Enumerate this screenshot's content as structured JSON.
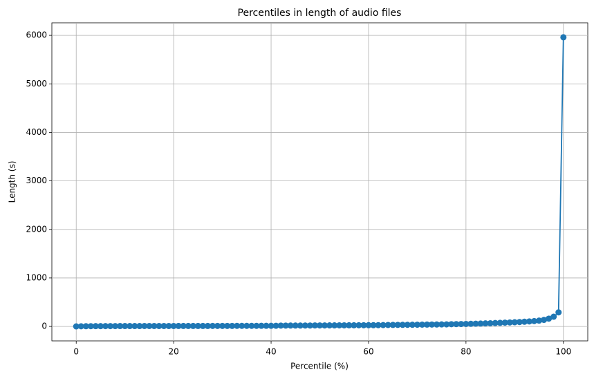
{
  "chart_data": {
    "type": "line",
    "title": "Percentiles in length of audio files",
    "x_label": "Percentile (%)",
    "y_label": "Length (s)",
    "x": [
      0,
      1,
      2,
      3,
      4,
      5,
      6,
      7,
      8,
      9,
      10,
      11,
      12,
      13,
      14,
      15,
      16,
      17,
      18,
      19,
      20,
      21,
      22,
      23,
      24,
      25,
      26,
      27,
      28,
      29,
      30,
      31,
      32,
      33,
      34,
      35,
      36,
      37,
      38,
      39,
      40,
      41,
      42,
      43,
      44,
      45,
      46,
      47,
      48,
      49,
      50,
      51,
      52,
      53,
      54,
      55,
      56,
      57,
      58,
      59,
      60,
      61,
      62,
      63,
      64,
      65,
      66,
      67,
      68,
      69,
      70,
      71,
      72,
      73,
      74,
      75,
      76,
      77,
      78,
      79,
      80,
      81,
      82,
      83,
      84,
      85,
      86,
      87,
      88,
      89,
      90,
      91,
      92,
      93,
      94,
      95,
      96,
      97,
      98,
      99,
      100
    ],
    "values": [
      1,
      3,
      4,
      5,
      6,
      6,
      7,
      7,
      7,
      8,
      8,
      8,
      8,
      8,
      9,
      9,
      9,
      9,
      9,
      9,
      9,
      10,
      10,
      10,
      10,
      10,
      10,
      10,
      11,
      11,
      11,
      11,
      11,
      12,
      12,
      12,
      12,
      12,
      13,
      13,
      13,
      14,
      18,
      18,
      19,
      19,
      19,
      20,
      20,
      21,
      21,
      21,
      22,
      22,
      23,
      23,
      24,
      24,
      25,
      25,
      26,
      26,
      27,
      28,
      30,
      31,
      32,
      33,
      34,
      35,
      36,
      37,
      38,
      39,
      40,
      42,
      43,
      46,
      48,
      50,
      52,
      54,
      57,
      60,
      63,
      66,
      70,
      74,
      78,
      82,
      86,
      91,
      97,
      103,
      110,
      120,
      135,
      160,
      200,
      290,
      5960
    ],
    "color": "#1f77b4",
    "marker": "o",
    "xlim": [
      -5,
      105
    ],
    "ylim": [
      -298,
      6258
    ],
    "xticks": [
      0,
      20,
      40,
      60,
      80,
      100
    ],
    "yticks": [
      0,
      1000,
      2000,
      3000,
      4000,
      5000,
      6000
    ],
    "grid": true
  }
}
